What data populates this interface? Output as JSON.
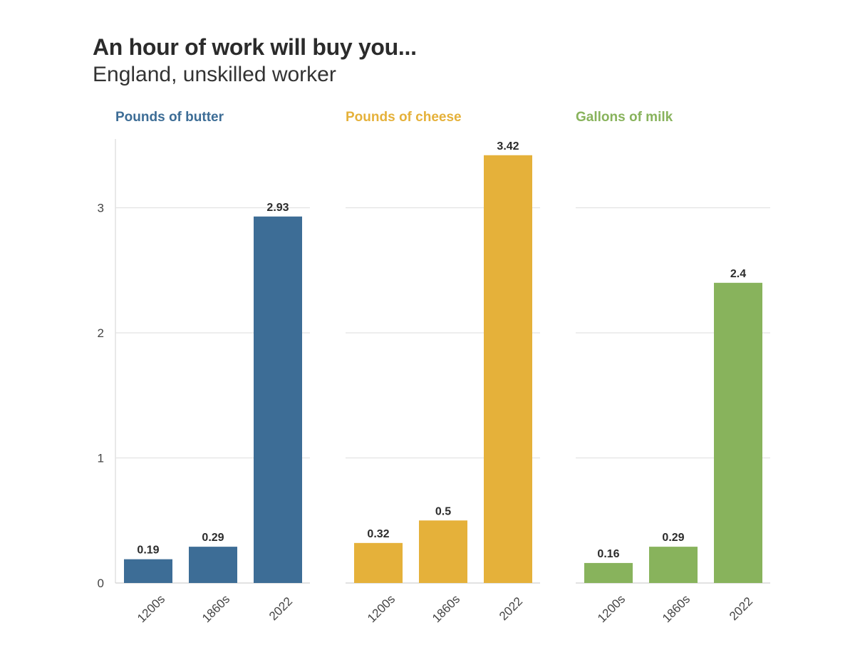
{
  "title": "An hour of work will buy you...",
  "subtitle": "England, unskilled worker",
  "chart_data": {
    "type": "bar",
    "title": "An hour of work will buy you...",
    "subtitle": "England, unskilled worker",
    "categories": [
      "1200s",
      "1860s",
      "2022"
    ],
    "ylim": [
      0,
      3.55
    ],
    "yticks": [
      0,
      1,
      2,
      3
    ],
    "grid": true,
    "panels": [
      {
        "name": "Pounds of butter",
        "color": "#3d6d96",
        "values": [
          0.19,
          0.29,
          2.93
        ],
        "labels": [
          "0.19",
          "0.29",
          "2.93"
        ]
      },
      {
        "name": "Pounds of cheese",
        "color": "#e5b13a",
        "values": [
          0.32,
          0.5,
          3.42
        ],
        "labels": [
          "0.32",
          "0.5",
          "3.42"
        ]
      },
      {
        "name": "Gallons of milk",
        "color": "#88b35c",
        "values": [
          0.16,
          0.29,
          2.4
        ],
        "labels": [
          "0.16",
          "0.29",
          "2.4"
        ]
      }
    ]
  }
}
